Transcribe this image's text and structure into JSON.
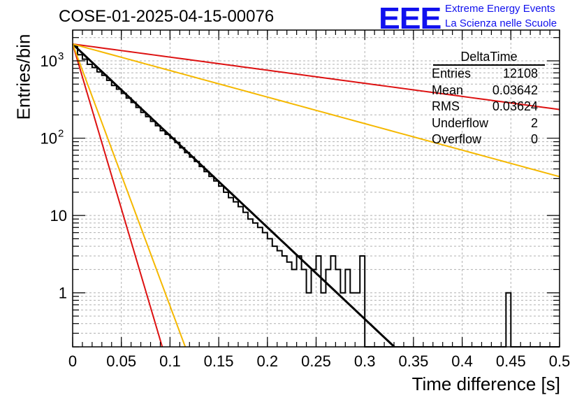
{
  "header": {
    "run_title": "COSE-01-2025-04-15-00076",
    "logo_text": "EEE",
    "logo_line1": "Extreme Energy Events",
    "logo_line2": "La Scienza nelle Scuole"
  },
  "stats_box": {
    "title": "DeltaTime",
    "rows": [
      {
        "label": "Entries",
        "value": "12108"
      },
      {
        "label": "Mean",
        "value": "0.03642"
      },
      {
        "label": "RMS",
        "value": "0.03624"
      },
      {
        "label": "Underflow",
        "value": "2"
      },
      {
        "label": "Overflow",
        "value": "0"
      }
    ]
  },
  "colors": {
    "histogram": "#000000",
    "fit": "#000000",
    "curve_red": "#dd1111",
    "curve_orange": "#f5b800",
    "logo": "#1111ee"
  },
  "chart_data": {
    "type": "histogram",
    "xlabel": "Time difference [s]",
    "ylabel": "Entries/bin",
    "xlim": [
      0,
      0.5
    ],
    "ylim": [
      0.2,
      2500
    ],
    "yscale": "log",
    "grid": true,
    "x_ticks": [
      "0",
      "0.05",
      "0.1",
      "0.15",
      "0.2",
      "0.25",
      "0.3",
      "0.35",
      "0.4",
      "0.45",
      "0.5"
    ],
    "y_ticks": [
      "1",
      "10",
      "10^2",
      "10^3"
    ],
    "bin_width": 0.005,
    "bin_counts": [
      1550,
      1200,
      1050,
      900,
      820,
      720,
      650,
      560,
      480,
      430,
      380,
      330,
      290,
      250,
      215,
      190,
      165,
      145,
      125,
      112,
      100,
      88,
      75,
      65,
      57,
      50,
      43,
      37,
      32,
      28,
      24,
      20,
      17,
      15,
      13,
      11,
      9,
      8,
      7,
      6,
      5,
      4,
      3.5,
      3,
      2.5,
      2,
      3,
      2,
      1,
      2,
      3,
      1,
      2,
      3,
      2,
      1,
      2,
      1,
      1,
      3,
      0,
      0,
      0,
      0,
      0,
      0,
      0,
      0,
      0,
      0,
      0,
      0,
      0,
      0,
      0,
      0,
      0,
      0,
      0,
      0,
      0,
      0,
      0,
      0,
      0,
      0,
      0,
      0,
      0,
      1,
      0,
      0,
      0,
      0,
      0,
      0,
      0,
      0,
      0,
      0
    ],
    "curves": [
      {
        "label": "fit",
        "color": "#000000",
        "amplitude": 1650,
        "slope": -27.3,
        "x_end": 0.335
      },
      {
        "label": "red-shallow",
        "color": "#dd1111",
        "amplitude": 1650,
        "slope": -3.9,
        "x_end": 0.5
      },
      {
        "label": "orange-shallow",
        "color": "#f5b800",
        "amplitude": 1650,
        "slope": -7.9,
        "x_end": 0.5
      },
      {
        "label": "red-steep",
        "color": "#dd1111",
        "amplitude": 1650,
        "slope": -98,
        "x_end": 0.1
      },
      {
        "label": "orange-steep",
        "color": "#f5b800",
        "amplitude": 1650,
        "slope": -78,
        "x_end": 0.12
      }
    ]
  }
}
